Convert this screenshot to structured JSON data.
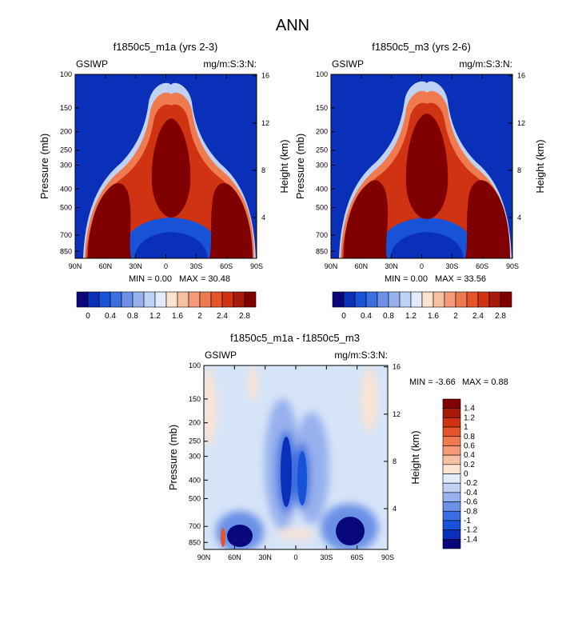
{
  "figure_title": "ANN",
  "chart_data": [
    {
      "type": "heatmap",
      "title": "f1850c5_m1a (yrs 2-3)",
      "left_label": "GSIWP",
      "right_label": "mg/m:S:3:N:",
      "xlabel": "",
      "ylabel": "Pressure (mb)",
      "ylabel_right": "Height (km)",
      "x_ticks": [
        "90N",
        "60N",
        "30N",
        "0",
        "30S",
        "60S",
        "90S"
      ],
      "x_values": [
        90,
        60,
        30,
        0,
        -30,
        -60,
        -90
      ],
      "xlim": [
        90,
        -90
      ],
      "y_ticks": [
        "100",
        "150",
        "200",
        "250",
        "300",
        "400",
        "500",
        "700",
        "850"
      ],
      "y_values": [
        100,
        150,
        200,
        250,
        300,
        400,
        500,
        700,
        850
      ],
      "ylim": [
        100,
        925
      ],
      "y2_ticks": [
        "16",
        "12",
        "8",
        "4"
      ],
      "y2_values": [
        16,
        12,
        8,
        4
      ],
      "min_text": "MIN =   0.00",
      "max_text": "MAX =  30.48",
      "min": 0.0,
      "max": 30.48,
      "colorbar": {
        "levels": [
          0,
          0.2,
          0.4,
          0.6,
          0.8,
          1,
          1.2,
          1.4,
          1.6,
          1.8,
          2,
          2.2,
          2.4,
          2.6,
          2.8
        ],
        "labels": [
          "0",
          "0.4",
          "0.8",
          "1.2",
          "1.6",
          "2",
          "2.4",
          "2.8"
        ],
        "colors": [
          "#08087c",
          "#0a2fb8",
          "#1852d6",
          "#3b6ee0",
          "#6b90e6",
          "#97b1ee",
          "#bfd2f4",
          "#e1ebfa",
          "#fde3d2",
          "#f8c0a2",
          "#f59b77",
          "#ef7a4f",
          "#e5542a",
          "#cf3311",
          "#a8190a",
          "#800000"
        ]
      },
      "features": "Near-zero (dark blue) upper troposphere and lower tropics; deep red high-values columns over 60N/60S below 300mb; tropical tower centered ~10N-5S reaching ~150mb"
    },
    {
      "type": "heatmap",
      "title": "f1850c5_m3 (yrs 2-6)",
      "left_label": "GSIWP",
      "right_label": "mg/m:S:3:N:",
      "xlabel": "",
      "ylabel": "Pressure (mb)",
      "ylabel_right": "Height (km)",
      "x_ticks": [
        "90N",
        "60N",
        "30N",
        "0",
        "30S",
        "60S",
        "90S"
      ],
      "x_values": [
        90,
        60,
        30,
        0,
        -30,
        -60,
        -90
      ],
      "xlim": [
        90,
        -90
      ],
      "y_ticks": [
        "100",
        "150",
        "200",
        "250",
        "300",
        "400",
        "500",
        "700",
        "850"
      ],
      "y_values": [
        100,
        150,
        200,
        250,
        300,
        400,
        500,
        700,
        850
      ],
      "ylim": [
        100,
        925
      ],
      "y2_ticks": [
        "16",
        "12",
        "8",
        "4"
      ],
      "y2_values": [
        16,
        12,
        8,
        4
      ],
      "min_text": "MIN =   0.00",
      "max_text": "MAX =  33.56",
      "min": 0.0,
      "max": 33.56,
      "colorbar": {
        "levels": [
          0,
          0.2,
          0.4,
          0.6,
          0.8,
          1,
          1.2,
          1.4,
          1.6,
          1.8,
          2,
          2.2,
          2.4,
          2.6,
          2.8
        ],
        "labels": [
          "0",
          "0.4",
          "0.8",
          "1.2",
          "1.6",
          "2",
          "2.4",
          "2.8"
        ],
        "colors": [
          "#08087c",
          "#0a2fb8",
          "#1852d6",
          "#3b6ee0",
          "#6b90e6",
          "#97b1ee",
          "#bfd2f4",
          "#e1ebfa",
          "#fde3d2",
          "#f8c0a2",
          "#f59b77",
          "#ef7a4f",
          "#e5542a",
          "#cf3311",
          "#a8190a",
          "#800000"
        ]
      },
      "features": "Same structure as the first panel with slightly larger magnitudes"
    },
    {
      "type": "heatmap",
      "title": "f1850c5_m1a - f1850c5_m3",
      "left_label": "GSIWP",
      "right_label": "mg/m:S:3:N:",
      "xlabel": "",
      "ylabel": "Pressure (mb)",
      "ylabel_right": "Height (km)",
      "x_ticks": [
        "90N",
        "60N",
        "30N",
        "0",
        "30S",
        "60S",
        "90S"
      ],
      "x_values": [
        90,
        60,
        30,
        0,
        -30,
        -60,
        -90
      ],
      "xlim": [
        90,
        -90
      ],
      "y_ticks": [
        "100",
        "150",
        "200",
        "250",
        "300",
        "400",
        "500",
        "700",
        "850"
      ],
      "y_values": [
        100,
        150,
        200,
        250,
        300,
        400,
        500,
        700,
        850
      ],
      "ylim": [
        100,
        925
      ],
      "y2_ticks": [
        "16",
        "12",
        "8",
        "4"
      ],
      "y2_values": [
        16,
        12,
        8,
        4
      ],
      "min_text": "MIN =  -3.66",
      "max_text": "MAX =   0.88",
      "min": -3.66,
      "max": 0.88,
      "colorbar": {
        "levels": [
          -1.4,
          -1.2,
          -1,
          -0.8,
          -0.6,
          -0.4,
          -0.2,
          0,
          0.2,
          0.4,
          0.6,
          0.8,
          1,
          1.2,
          1.4
        ],
        "labels": [
          "1.4",
          "1.2",
          "1",
          "0.8",
          "0.6",
          "0.4",
          "0.2",
          "0",
          "-0.2",
          "-0.4",
          "-0.6",
          "-0.8",
          "-1",
          "-1.2",
          "-1.4"
        ],
        "colors": [
          "#800000",
          "#a8190a",
          "#cf3311",
          "#e5542a",
          "#ef7a4f",
          "#f59b77",
          "#f8c0a2",
          "#fde3d2",
          "#e1ebfa",
          "#bfd2f4",
          "#97b1ee",
          "#6b90e6",
          "#3b6ee0",
          "#1852d6",
          "#0a2fb8",
          "#08087c"
        ]
      },
      "features": "Mostly near zero (light blue); strong negative cores at ~60N and ~60S near 700-850mb; negative tropical towers at ~10N and ~5S up to ~200mb; small positive patches near poles"
    }
  ]
}
